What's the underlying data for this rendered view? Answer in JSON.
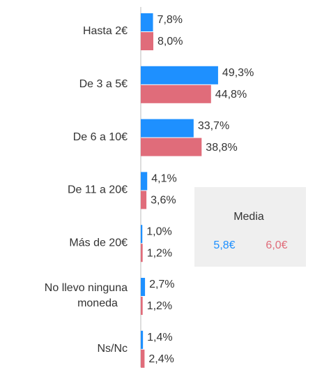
{
  "chart_data": {
    "type": "bar",
    "orientation": "horizontal",
    "categories": [
      "Hasta 2€",
      "De 3 a 5€",
      "De 6 a 10€",
      "De 11 a 20€",
      "Más de 20€",
      "No llevo ninguna\nmoneda",
      "Ns/Nc"
    ],
    "series": [
      {
        "color": "#1e90ff",
        "values": [
          7.8,
          49.3,
          33.7,
          4.1,
          1.0,
          2.7,
          1.4
        ],
        "value_labels": [
          "7,8%",
          "49,3%",
          "33,7%",
          "4,1%",
          "1,0%",
          "2,7%",
          "1,4%"
        ]
      },
      {
        "color": "#e06c7a",
        "values": [
          8.0,
          44.8,
          38.8,
          3.6,
          1.2,
          1.2,
          2.4
        ],
        "value_labels": [
          "8,0%",
          "44,8%",
          "38,8%",
          "3,6%",
          "1,2%",
          "1,2%",
          "2,4%"
        ]
      }
    ],
    "xlim": [
      0,
      100
    ],
    "annotation": {
      "title": "Media",
      "values": [
        "5,8€",
        "6,0€"
      ]
    }
  }
}
